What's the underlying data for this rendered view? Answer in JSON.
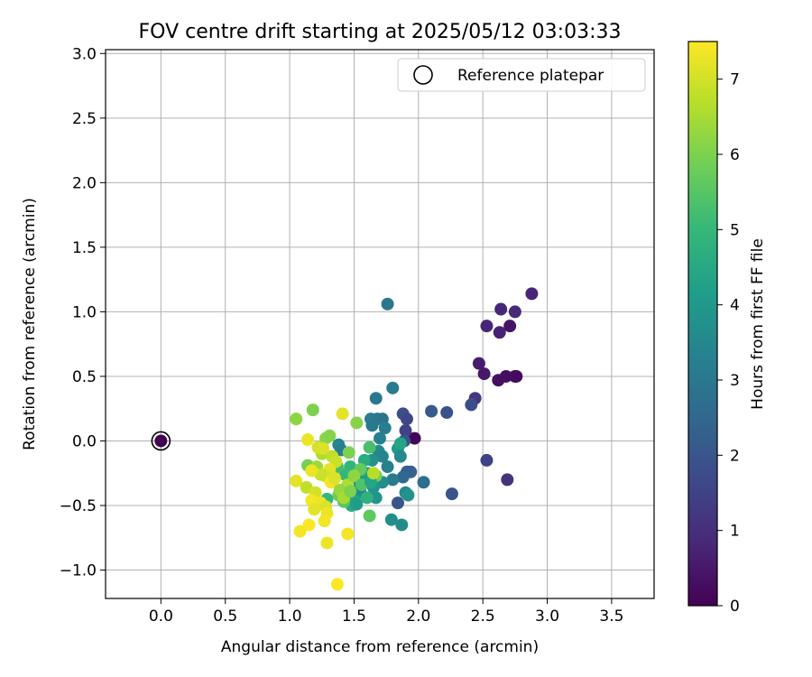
{
  "chart_data": {
    "type": "scatter",
    "title": "FOV centre drift starting at 2025/05/12 03:03:33",
    "xlabel": "Angular distance from reference (arcmin)",
    "ylabel": "Rotation from reference (arcmin)",
    "xlim": [
      -0.43,
      3.83
    ],
    "ylim": [
      -1.22,
      3.03
    ],
    "xticks": [
      "0.0",
      "0.5",
      "1.0",
      "1.5",
      "2.0",
      "2.5",
      "3.0",
      "3.5"
    ],
    "xtick_values": [
      0,
      0.5,
      1.0,
      1.5,
      2.0,
      2.5,
      3.0,
      3.5
    ],
    "yticks": [
      "−1.0",
      "−0.5",
      "0.0",
      "0.5",
      "1.0",
      "1.5",
      "2.0",
      "2.5",
      "3.0"
    ],
    "ytick_values": [
      -1.0,
      -0.5,
      0,
      0.5,
      1.0,
      1.5,
      2.0,
      2.5,
      3.0
    ],
    "grid": true,
    "legend": {
      "position": "upper right",
      "label": "Reference platepar"
    },
    "reference": {
      "x": 0.0,
      "y": 0.0
    },
    "colorbar": {
      "label": "Hours from first FF file",
      "colormap": "viridis",
      "range": [
        0,
        7.5
      ],
      "ticks": [
        "0",
        "1",
        "2",
        "3",
        "4",
        "5",
        "6",
        "7"
      ],
      "tick_values": [
        0,
        1,
        2,
        3,
        4,
        5,
        6,
        7
      ]
    },
    "colormap_stops": [
      "#440154",
      "#482878",
      "#3e4989",
      "#31688e",
      "#26828e",
      "#1f9e89",
      "#35b779",
      "#6ece58",
      "#b5de2b",
      "#fde725"
    ],
    "points": [
      {
        "x": 0.0,
        "y": 0.0,
        "h": 0.0
      },
      {
        "x": 1.97,
        "y": 0.02,
        "h": 0.1
      },
      {
        "x": 2.75,
        "y": 0.5,
        "h": 0.2
      },
      {
        "x": 2.76,
        "y": 0.5,
        "h": 0.2
      },
      {
        "x": 2.68,
        "y": 0.5,
        "h": 0.3
      },
      {
        "x": 2.62,
        "y": 0.47,
        "h": 0.3
      },
      {
        "x": 2.51,
        "y": 0.52,
        "h": 0.5
      },
      {
        "x": 2.47,
        "y": 0.6,
        "h": 0.6
      },
      {
        "x": 2.71,
        "y": 0.89,
        "h": 0.4
      },
      {
        "x": 2.53,
        "y": 0.89,
        "h": 0.8
      },
      {
        "x": 2.63,
        "y": 0.84,
        "h": 0.7
      },
      {
        "x": 2.64,
        "y": 1.02,
        "h": 0.8
      },
      {
        "x": 2.75,
        "y": 1.0,
        "h": 0.9
      },
      {
        "x": 2.88,
        "y": 1.14,
        "h": 0.8
      },
      {
        "x": 2.69,
        "y": -0.3,
        "h": 1.1
      },
      {
        "x": 2.53,
        "y": -0.15,
        "h": 1.5
      },
      {
        "x": 2.44,
        "y": 0.33,
        "h": 1.2
      },
      {
        "x": 2.41,
        "y": 0.28,
        "h": 1.8
      },
      {
        "x": 2.22,
        "y": 0.22,
        "h": 1.9
      },
      {
        "x": 2.26,
        "y": -0.41,
        "h": 2.0
      },
      {
        "x": 2.1,
        "y": 0.23,
        "h": 2.1
      },
      {
        "x": 1.88,
        "y": 0.21,
        "h": 1.8
      },
      {
        "x": 1.91,
        "y": 0.17,
        "h": 1.6
      },
      {
        "x": 1.9,
        "y": 0.08,
        "h": 1.5
      },
      {
        "x": 1.89,
        "y": 0.0,
        "h": 1.9
      },
      {
        "x": 1.84,
        "y": -0.48,
        "h": 2.0
      },
      {
        "x": 2.04,
        "y": -0.32,
        "h": 2.7
      },
      {
        "x": 1.94,
        "y": -0.24,
        "h": 2.4
      },
      {
        "x": 1.91,
        "y": -0.24,
        "h": 2.3
      },
      {
        "x": 1.88,
        "y": -0.28,
        "h": 2.5
      },
      {
        "x": 1.76,
        "y": 1.06,
        "h": 3.0
      },
      {
        "x": 1.8,
        "y": 0.41,
        "h": 3.1
      },
      {
        "x": 1.67,
        "y": 0.33,
        "h": 3.0
      },
      {
        "x": 1.63,
        "y": 0.17,
        "h": 3.2
      },
      {
        "x": 1.68,
        "y": 0.17,
        "h": 3.0
      },
      {
        "x": 1.72,
        "y": 0.17,
        "h": 2.9
      },
      {
        "x": 1.74,
        "y": 0.1,
        "h": 3.2
      },
      {
        "x": 1.64,
        "y": 0.12,
        "h": 3.0
      },
      {
        "x": 1.7,
        "y": 0.02,
        "h": 3.3
      },
      {
        "x": 1.69,
        "y": -0.08,
        "h": 3.6
      },
      {
        "x": 1.72,
        "y": -0.12,
        "h": 3.4
      },
      {
        "x": 1.64,
        "y": -0.15,
        "h": 3.8
      },
      {
        "x": 1.76,
        "y": -0.2,
        "h": 3.3
      },
      {
        "x": 1.8,
        "y": -0.3,
        "h": 3.1
      },
      {
        "x": 1.84,
        "y": -0.06,
        "h": 4.0
      },
      {
        "x": 1.86,
        "y": -0.12,
        "h": 3.5
      },
      {
        "x": 1.86,
        "y": -0.02,
        "h": 4.4
      },
      {
        "x": 1.9,
        "y": -0.4,
        "h": 3.5
      },
      {
        "x": 1.92,
        "y": -0.42,
        "h": 3.8
      },
      {
        "x": 1.87,
        "y": -0.65,
        "h": 3.6
      },
      {
        "x": 1.79,
        "y": -0.61,
        "h": 3.7
      },
      {
        "x": 1.67,
        "y": -0.44,
        "h": 3.9
      },
      {
        "x": 1.72,
        "y": -0.32,
        "h": 3.7
      },
      {
        "x": 1.65,
        "y": -0.36,
        "h": 3.9
      },
      {
        "x": 1.5,
        "y": -0.35,
        "h": 4.3
      },
      {
        "x": 1.53,
        "y": -0.32,
        "h": 4.0
      },
      {
        "x": 1.57,
        "y": -0.3,
        "h": 3.8
      },
      {
        "x": 1.55,
        "y": -0.4,
        "h": 3.6
      },
      {
        "x": 1.6,
        "y": -0.25,
        "h": 4.2
      },
      {
        "x": 1.58,
        "y": -0.15,
        "h": 4.6
      },
      {
        "x": 1.47,
        "y": -0.2,
        "h": 4.9
      },
      {
        "x": 1.43,
        "y": -0.26,
        "h": 5.0
      },
      {
        "x": 1.38,
        "y": -0.03,
        "h": 3.4
      },
      {
        "x": 1.4,
        "y": -0.07,
        "h": 3.2
      },
      {
        "x": 1.37,
        "y": -0.2,
        "h": 5.2
      },
      {
        "x": 1.33,
        "y": -0.3,
        "h": 4.8
      },
      {
        "x": 1.29,
        "y": -0.45,
        "h": 5.0
      },
      {
        "x": 1.5,
        "y": -0.46,
        "h": 4.4
      },
      {
        "x": 1.48,
        "y": -0.5,
        "h": 4.6
      },
      {
        "x": 1.52,
        "y": -0.49,
        "h": 4.1
      },
      {
        "x": 1.42,
        "y": -0.47,
        "h": 5.5
      },
      {
        "x": 1.38,
        "y": -0.42,
        "h": 5.8
      },
      {
        "x": 1.62,
        "y": -0.58,
        "h": 5.6
      },
      {
        "x": 1.62,
        "y": -0.05,
        "h": 5.3
      },
      {
        "x": 1.55,
        "y": -0.22,
        "h": 5.7
      },
      {
        "x": 1.67,
        "y": -0.27,
        "h": 5.9
      },
      {
        "x": 1.46,
        "y": -0.09,
        "h": 6.0
      },
      {
        "x": 1.52,
        "y": 0.14,
        "h": 6.1
      },
      {
        "x": 1.28,
        "y": 0.02,
        "h": 6.2
      },
      {
        "x": 1.31,
        "y": 0.04,
        "h": 6.1
      },
      {
        "x": 1.18,
        "y": 0.24,
        "h": 6.0
      },
      {
        "x": 1.05,
        "y": 0.17,
        "h": 6.2
      },
      {
        "x": 1.14,
        "y": -0.19,
        "h": 5.9
      },
      {
        "x": 1.21,
        "y": -0.2,
        "h": 6.4
      },
      {
        "x": 1.25,
        "y": -0.1,
        "h": 6.6
      },
      {
        "x": 1.22,
        "y": -0.05,
        "h": 7.0
      },
      {
        "x": 1.14,
        "y": 0.01,
        "h": 7.3
      },
      {
        "x": 1.26,
        "y": -0.06,
        "h": 7.1
      },
      {
        "x": 1.33,
        "y": -0.12,
        "h": 6.8
      },
      {
        "x": 1.36,
        "y": -0.16,
        "h": 6.9
      },
      {
        "x": 1.31,
        "y": -0.22,
        "h": 7.2
      },
      {
        "x": 1.27,
        "y": -0.27,
        "h": 7.0
      },
      {
        "x": 1.32,
        "y": -0.32,
        "h": 7.4
      },
      {
        "x": 1.35,
        "y": -0.29,
        "h": 7.1
      },
      {
        "x": 1.24,
        "y": -0.26,
        "h": 6.9
      },
      {
        "x": 1.05,
        "y": -0.31,
        "h": 7.2
      },
      {
        "x": 1.13,
        "y": -0.36,
        "h": 6.8
      },
      {
        "x": 1.17,
        "y": -0.23,
        "h": 7.3
      },
      {
        "x": 1.2,
        "y": -0.4,
        "h": 7.0
      },
      {
        "x": 1.17,
        "y": -0.46,
        "h": 7.4
      },
      {
        "x": 1.24,
        "y": -0.48,
        "h": 7.3
      },
      {
        "x": 1.28,
        "y": -0.51,
        "h": 7.1
      },
      {
        "x": 1.19,
        "y": -0.53,
        "h": 7.2
      },
      {
        "x": 1.29,
        "y": -0.56,
        "h": 7.3
      },
      {
        "x": 1.27,
        "y": -0.62,
        "h": 7.4
      },
      {
        "x": 1.15,
        "y": -0.65,
        "h": 7.5
      },
      {
        "x": 1.08,
        "y": -0.7,
        "h": 7.4
      },
      {
        "x": 1.29,
        "y": -0.79,
        "h": 7.3
      },
      {
        "x": 1.45,
        "y": -0.72,
        "h": 7.4
      },
      {
        "x": 1.37,
        "y": -1.11,
        "h": 7.5
      },
      {
        "x": 1.41,
        "y": 0.21,
        "h": 7.2
      },
      {
        "x": 1.45,
        "y": -0.34,
        "h": 6.6
      },
      {
        "x": 1.39,
        "y": -0.38,
        "h": 6.3
      },
      {
        "x": 1.42,
        "y": -0.44,
        "h": 6.5
      },
      {
        "x": 1.47,
        "y": -0.39,
        "h": 6.0
      },
      {
        "x": 1.5,
        "y": -0.27,
        "h": 6.2
      },
      {
        "x": 1.56,
        "y": -0.34,
        "h": 5.4
      },
      {
        "x": 1.6,
        "y": -0.44,
        "h": 4.8
      },
      {
        "x": 1.63,
        "y": -0.32,
        "h": 4.4
      },
      {
        "x": 1.65,
        "y": -0.25,
        "h": 6.7
      }
    ]
  }
}
